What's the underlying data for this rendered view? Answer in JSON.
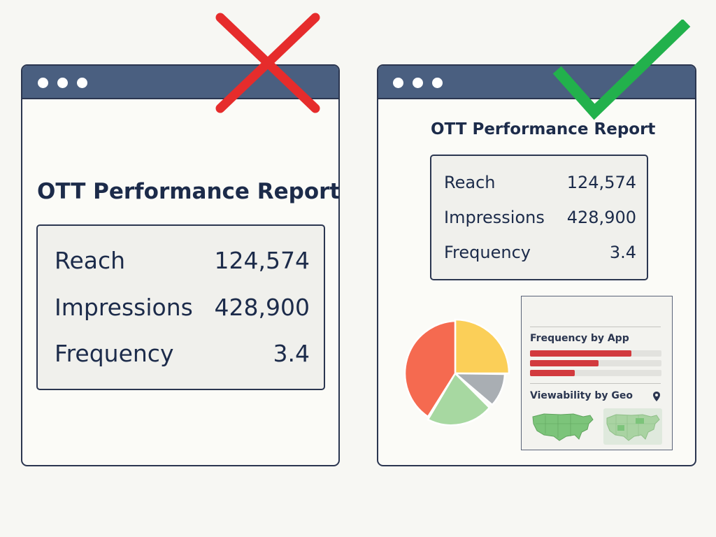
{
  "left_panel": {
    "title": "OTT Performance Report",
    "metrics": [
      {
        "label": "Reach",
        "value": "124,574"
      },
      {
        "label": "Impressions",
        "value": "428,900"
      },
      {
        "label": "Frequency",
        "value": "3.4"
      }
    ],
    "status": "x-icon",
    "status_color": "#e62c2c"
  },
  "right_panel": {
    "title": "OTT Performance Report",
    "metrics": [
      {
        "label": "Reach",
        "value": "124,574"
      },
      {
        "label": "Impressions",
        "value": "428,900"
      },
      {
        "label": "Frequency",
        "value": "3.4"
      }
    ],
    "status": "check-icon",
    "status_color": "#22b14c",
    "frequency_widget": {
      "title": "Frequency by App",
      "bars": [
        0.77,
        0.52,
        0.34
      ],
      "bar_color": "#d23a3e"
    },
    "geo_widget": {
      "title": "Viewability by Geo",
      "icon": "map-pin-icon"
    },
    "pie_colors": [
      "#fbcf58",
      "#a9aeb3",
      "#a7d8a1",
      "#f56a50"
    ]
  }
}
